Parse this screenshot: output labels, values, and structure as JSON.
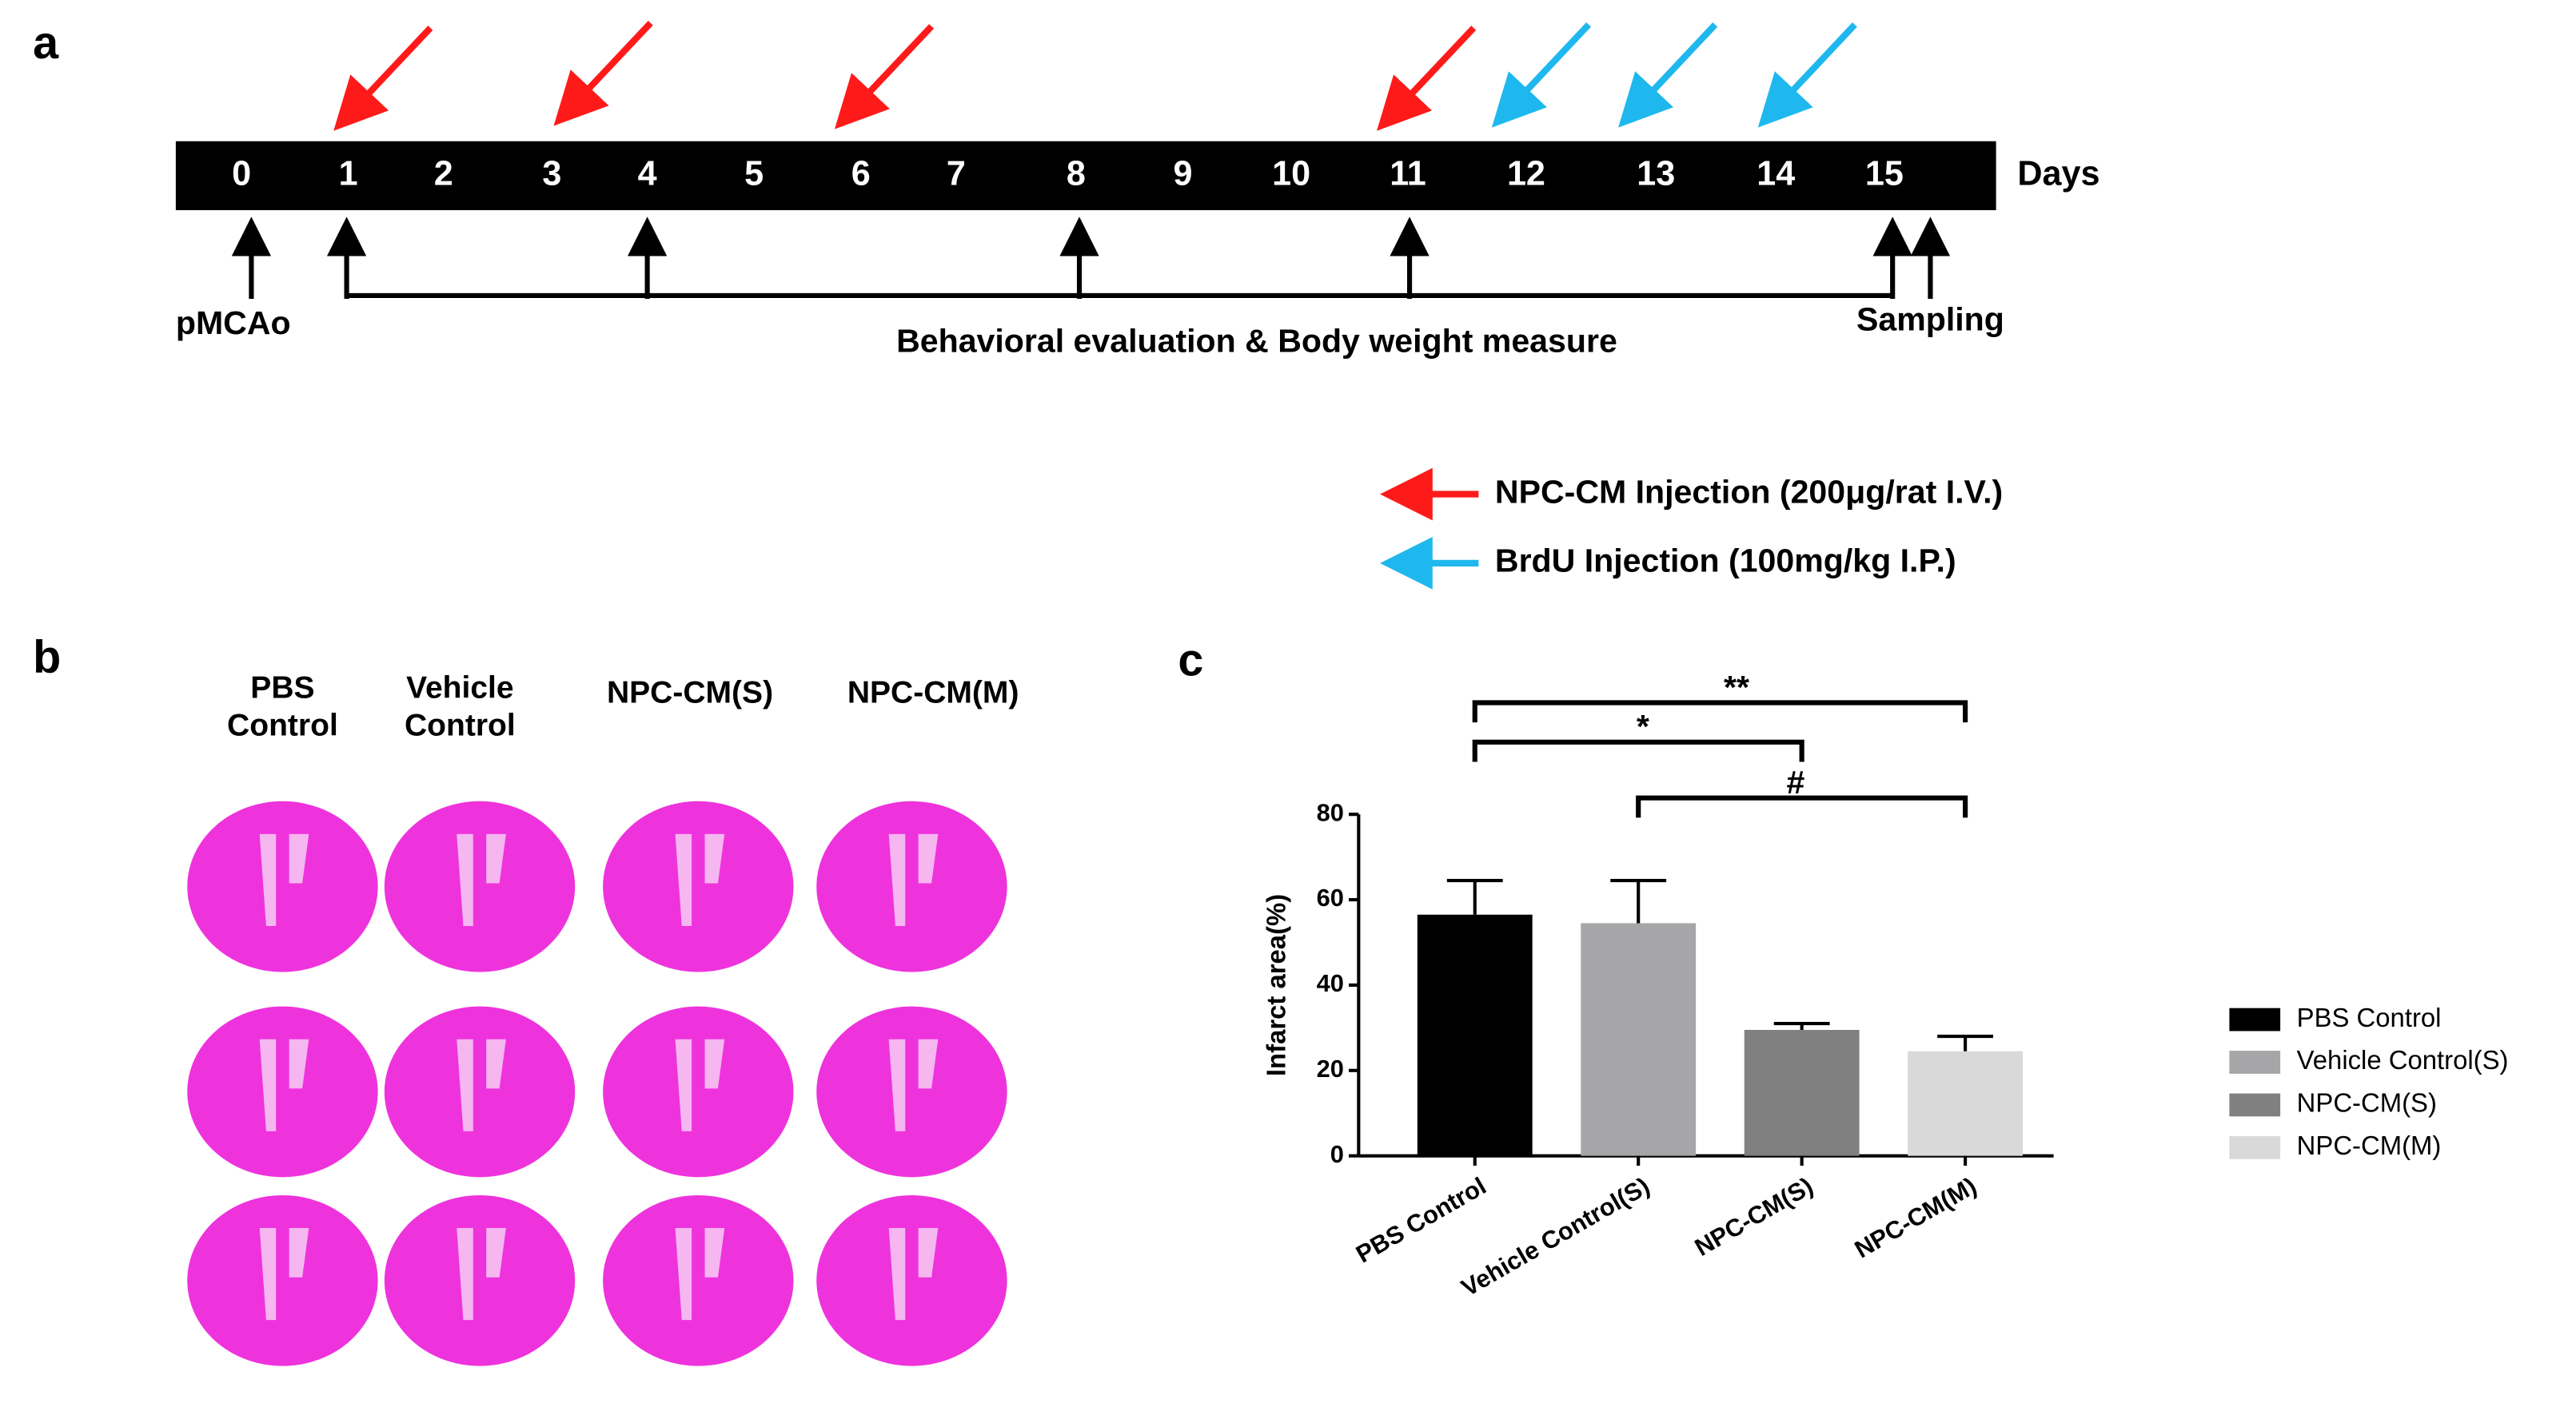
{
  "panel_labels": [
    "a",
    "b",
    "c"
  ],
  "timeline": {
    "days": [
      0,
      1,
      2,
      3,
      4,
      5,
      6,
      7,
      8,
      9,
      10,
      11,
      12,
      13,
      14,
      15
    ],
    "unit": "Days",
    "start_label": "pMCAo",
    "end_label": "Sampling",
    "span_label": "Behavioral evaluation & Body weight measure",
    "legend": [
      {
        "label": "NPC-CM Injection (200μg/rat I.V.)",
        "color": "#ff1a1a"
      },
      {
        "label": "BrdU Injection (100mg/kg I.P.)",
        "color": "#1fb8ee"
      }
    ]
  },
  "slices": {
    "columns": [
      [
        "PBS",
        "Control"
      ],
      [
        "Vehicle",
        "Control"
      ],
      [
        "NPC-CM(S)"
      ],
      [
        "NPC-CM(M)"
      ]
    ]
  },
  "chart_data": {
    "type": "bar",
    "y_label": "Infarct area(%)",
    "categories": [
      "PBS Control",
      "Vehicle Control(S)",
      "NPC-CM(S)",
      "NPC-CM(M)"
    ],
    "values": [
      56.5,
      54.5,
      29.5,
      24.5
    ],
    "errors": [
      8,
      10,
      1.5,
      3.5
    ],
    "colors": [
      "#000000",
      "#a6a6a9",
      "#808080",
      "#d9d9d9"
    ],
    "ylim": [
      0,
      80
    ],
    "yticks": [
      0,
      20,
      40,
      60,
      80
    ],
    "annotations": [
      "**",
      "*",
      "#"
    ],
    "legend": true
  }
}
